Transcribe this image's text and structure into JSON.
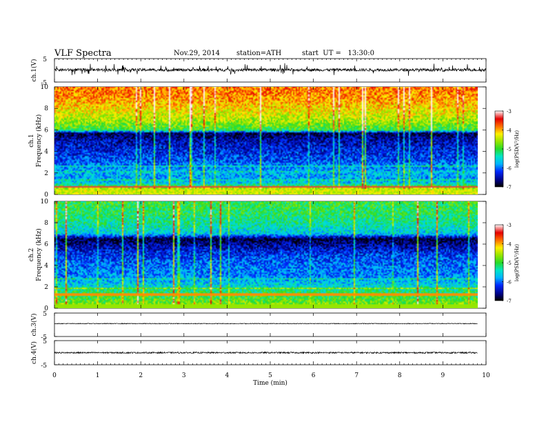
{
  "header": {
    "title": "VLF Spectra",
    "date": "Nov.29, 2014",
    "station": "station=ATH",
    "start": "start  UT =   13:30:0"
  },
  "chart_data": [
    {
      "type": "line",
      "panel": "ch1-waveform",
      "ylabel": "ch.1(V)",
      "ylim": [
        -5,
        5
      ],
      "yticks": [
        "5",
        "-5"
      ],
      "mean_level": 0.2,
      "noise_amplitude": 0.6,
      "xlim": [
        0,
        10
      ]
    },
    {
      "type": "heatmap",
      "panel": "ch1-spectrogram",
      "ylabel": "Frequency  (kHz)",
      "channel_label": "ch.1",
      "ylim": [
        0,
        10
      ],
      "yticks": [
        "0",
        "2",
        "4",
        "6",
        "8",
        "10"
      ],
      "xlim": [
        0,
        9.8
      ],
      "colorbar": {
        "label": "log(PSD(V²/Hz)",
        "range": [
          -7,
          -3
        ],
        "ticks": [
          "-3",
          "-4",
          "-5",
          "-6",
          "-7"
        ]
      },
      "profile_khz": [
        0,
        0.5,
        1,
        1.5,
        2,
        3,
        4,
        5,
        5.7,
        6,
        7,
        8,
        9,
        10
      ],
      "profile_log_psd": [
        -4.2,
        -4.5,
        -5.6,
        -5.8,
        -5.7,
        -6.1,
        -6.3,
        -6.5,
        -6.8,
        -5.0,
        -4.5,
        -4.2,
        -3.9,
        -3.8
      ]
    },
    {
      "type": "heatmap",
      "panel": "ch2-spectrogram",
      "ylabel": "Frequency  (kHz)",
      "channel_label": "ch.2",
      "ylim": [
        0,
        10
      ],
      "yticks": [
        "0",
        "2",
        "4",
        "6",
        "8",
        "10"
      ],
      "xlim": [
        0,
        9.8
      ],
      "colorbar": {
        "label": "log(PSD(V²/Hz)",
        "range": [
          -7,
          -3
        ],
        "ticks": [
          "-3",
          "-4",
          "-5",
          "-6",
          "-7"
        ]
      },
      "profile_khz": [
        0,
        0.5,
        1,
        1.5,
        2,
        3,
        4,
        5,
        6,
        6.5,
        7,
        8,
        9,
        10
      ],
      "profile_log_psd": [
        -4.5,
        -4.8,
        -5.0,
        -5.2,
        -5.5,
        -5.9,
        -6.0,
        -6.2,
        -6.6,
        -6.9,
        -5.6,
        -5.3,
        -5.1,
        -5.0
      ]
    },
    {
      "type": "line",
      "panel": "ch3-waveform",
      "ylabel": "ch.3(V)",
      "ylim": [
        -5,
        5
      ],
      "yticks": [
        "5",
        "-5"
      ],
      "mean_level": 0.5,
      "noise_amplitude": 0.15,
      "xlim": [
        0,
        9.8
      ]
    },
    {
      "type": "line",
      "panel": "ch4-waveform",
      "ylabel": "ch.4(V)",
      "ylim": [
        -5,
        5
      ],
      "yticks": [
        "5",
        "-5"
      ],
      "mean_level": 0.0,
      "noise_amplitude": 0.3,
      "xlim": [
        0,
        9.8
      ]
    }
  ],
  "x_axis": {
    "label": "Time  (min)",
    "ticks": [
      "0",
      "1",
      "2",
      "3",
      "4",
      "5",
      "6",
      "7",
      "8",
      "9",
      "10"
    ],
    "range": [
      0,
      10
    ]
  }
}
